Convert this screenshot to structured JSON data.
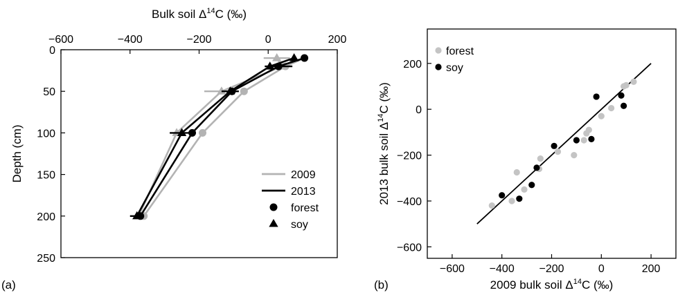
{
  "chart_data": [
    {
      "panel": "(a)",
      "type": "line",
      "xlabel_prefix": "Bulk soil",
      "xlabel_delta": "Δ",
      "xlabel_sup": "14",
      "xlabel_rest": "C (‰)",
      "ylabel": "Depth (cm)",
      "xlim": [
        -600,
        200
      ],
      "ylim": [
        250,
        0
      ],
      "x_ticks": [
        -600,
        -400,
        -200,
        0,
        200
      ],
      "x_ticks_minor": [
        -600,
        -400,
        -200,
        0,
        200
      ],
      "y_ticks": [
        0,
        50,
        100,
        150,
        200,
        250
      ],
      "depths": [
        10,
        20,
        50,
        100,
        200
      ],
      "series": [
        {
          "year": "2009",
          "site": "forest",
          "color": "#b3b3b3",
          "marker": "circle",
          "x": [
            105,
            50,
            -70,
            -190,
            -360
          ],
          "y": [
            10,
            20,
            50,
            100,
            200
          ],
          "xerr": [
            0,
            0,
            0,
            0,
            0
          ]
        },
        {
          "year": "2009",
          "site": "soy",
          "color": "#b3b3b3",
          "marker": "triangle",
          "x": [
            25,
            40,
            -135,
            -265,
            -375
          ],
          "y": [
            10,
            20,
            50,
            100,
            200
          ],
          "xerr": [
            38,
            0,
            50,
            0,
            0
          ]
        },
        {
          "year": "2013",
          "site": "forest",
          "color": "#000000",
          "marker": "circle",
          "x": [
            105,
            30,
            -105,
            -220,
            -370
          ],
          "y": [
            10,
            20,
            50,
            100,
            200
          ],
          "xerr": [
            0,
            40,
            0,
            0,
            0
          ]
        },
        {
          "year": "2013",
          "site": "soy",
          "color": "#000000",
          "marker": "triangle",
          "x": [
            75,
            5,
            -110,
            -250,
            -380
          ],
          "y": [
            10,
            20,
            50,
            100,
            200
          ],
          "xerr": [
            0,
            0,
            25,
            35,
            20
          ]
        }
      ],
      "legend": {
        "entries": [
          "2009",
          "2013",
          "forest",
          "soy"
        ],
        "placement": "lower-right"
      },
      "grid": false
    },
    {
      "panel": "(b)",
      "type": "scatter",
      "xlabel_prefix": "2009 bulk soil",
      "xlabel_delta": "Δ",
      "xlabel_sup": "14",
      "xlabel_rest": "C (‰)",
      "ylabel_prefix": "2013 bulk soil",
      "ylabel_delta": "Δ",
      "ylabel_sup": "14",
      "ylabel_rest": "C (‰)",
      "xlim": [
        -700,
        300
      ],
      "ylim": [
        -650,
        350
      ],
      "x_ticks": [
        -600,
        -400,
        -200,
        0,
        200
      ],
      "y_ticks": [
        -600,
        -400,
        -200,
        0,
        200
      ],
      "fit_line": {
        "x": [
          -500,
          200
        ],
        "y": [
          -500,
          200
        ]
      },
      "series": [
        {
          "name": "forest",
          "color": "#c4c4c4",
          "points": [
            [
              -440,
              -420
            ],
            [
              -360,
              -400
            ],
            [
              -340,
              -275
            ],
            [
              -310,
              -350
            ],
            [
              -250,
              -260
            ],
            [
              -245,
              -215
            ],
            [
              -175,
              -185
            ],
            [
              -110,
              -200
            ],
            [
              -70,
              -135
            ],
            [
              -60,
              -105
            ],
            [
              -50,
              -90
            ],
            [
              0,
              -30
            ],
            [
              40,
              5
            ],
            [
              90,
              100
            ],
            [
              100,
              105
            ],
            [
              130,
              120
            ]
          ]
        },
        {
          "name": "soy",
          "color": "#000000",
          "points": [
            [
              -400,
              -375
            ],
            [
              -330,
              -390
            ],
            [
              -280,
              -330
            ],
            [
              -260,
              -255
            ],
            [
              -190,
              -160
            ],
            [
              -100,
              -135
            ],
            [
              -40,
              -130
            ],
            [
              -20,
              55
            ],
            [
              80,
              60
            ],
            [
              90,
              15
            ]
          ]
        }
      ],
      "legend": {
        "entries": [
          "forest",
          "soy"
        ],
        "placement": "top-left"
      },
      "grid": false
    }
  ]
}
